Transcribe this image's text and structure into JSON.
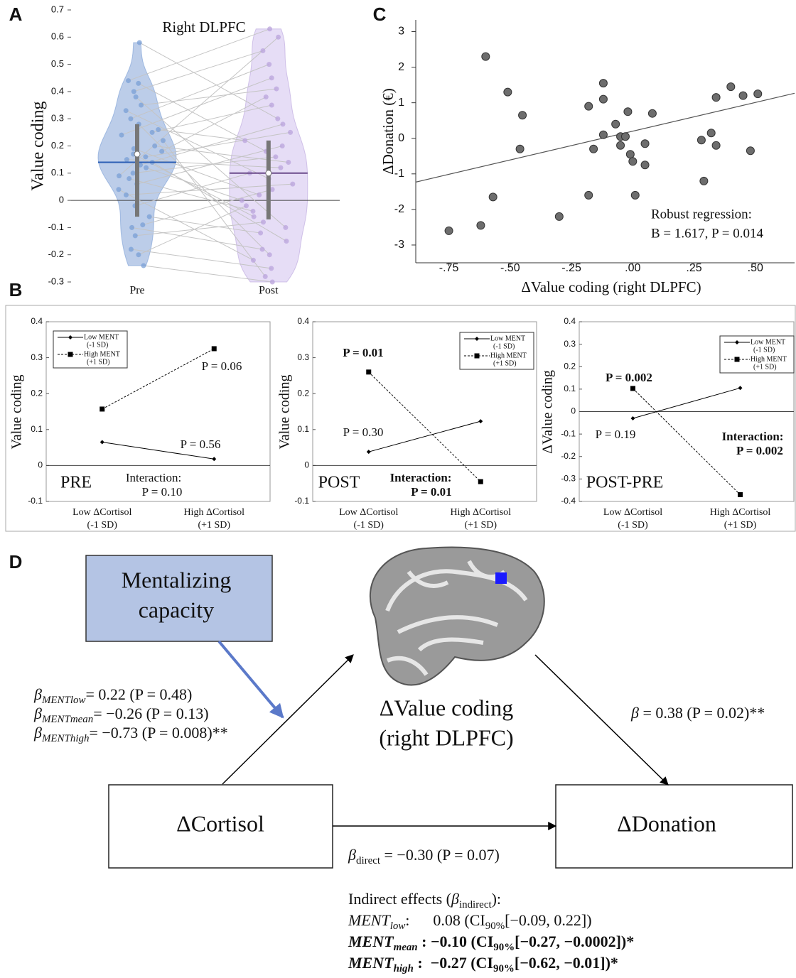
{
  "panel_labels": [
    "A",
    "B",
    "C",
    "D"
  ],
  "chart_data": [
    {
      "type": "violin",
      "title": "Right DLPFC",
      "y_label": "Value coding",
      "categories": [
        "Pre",
        "Post"
      ],
      "series": [
        {
          "color": "#7a9fd6",
          "fill": "#bccde9",
          "mean_color": "#2c5fb5",
          "mean": 0.14,
          "whisker": [
            -0.06,
            0.28
          ],
          "median": 0.17,
          "values": [
            0.58,
            0.44,
            0.43,
            0.4,
            0.38,
            0.35,
            0.33,
            0.3,
            0.28,
            0.26,
            0.25,
            0.24,
            0.22,
            0.2,
            0.19,
            0.18,
            0.17,
            0.16,
            0.15,
            0.14,
            0.13,
            0.12,
            0.1,
            0.09,
            0.08,
            0.06,
            0.04,
            0.02,
            -0.02,
            -0.06,
            -0.09,
            -0.1,
            -0.13,
            -0.18,
            -0.2,
            -0.24
          ]
        },
        {
          "color": "#b9a3dc",
          "fill": "#e6ddf6",
          "mean_color": "#6a4a8a",
          "mean": 0.1,
          "whisker": [
            -0.07,
            0.22
          ],
          "median": 0.1,
          "values": [
            0.3,
            0.63,
            0.18,
            0.55,
            -0.1,
            0.41,
            0.08,
            0.5,
            -0.2,
            0.22,
            0.35,
            0.45,
            -0.28,
            0.14,
            0.02,
            0.38,
            -0.06,
            0.25,
            0.12,
            -0.15,
            0.28,
            0.0,
            0.16,
            0.6,
            -0.04,
            0.2,
            -0.22,
            0.06,
            0.1,
            -0.12,
            0.04,
            -0.18,
            -0.08,
            -0.25,
            -0.02,
            -0.3
          ]
        }
      ],
      "paired_lines": true,
      "zero_line": true,
      "ylim": [
        -0.3,
        0.7
      ],
      "yticks": [
        -0.3,
        -0.2,
        -0.1,
        0,
        0.1,
        0.2,
        0.3,
        0.4,
        0.5,
        0.6,
        0.7
      ]
    },
    {
      "type": "scatter",
      "x_label": "ΔValue coding (right DLPFC)",
      "y_label": "ΔDonation (€)",
      "color": "#6d6d6d",
      "x": [
        -0.6,
        -0.51,
        -0.75,
        -0.62,
        -0.57,
        -0.45,
        -0.46,
        -0.3,
        -0.18,
        -0.18,
        -0.12,
        -0.12,
        -0.12,
        -0.16,
        -0.07,
        -0.05,
        -0.03,
        -0.05,
        -0.02,
        -0.01,
        0.0,
        0.05,
        0.05,
        0.01,
        0.08,
        0.28,
        0.32,
        0.34,
        0.29,
        0.34,
        0.4,
        0.45,
        0.51,
        0.48
      ],
      "y": [
        2.3,
        1.3,
        -2.6,
        -2.45,
        -1.65,
        0.65,
        -0.3,
        -2.2,
        0.9,
        -1.6,
        1.55,
        1.1,
        0.1,
        -0.3,
        0.4,
        0.05,
        0.05,
        -0.2,
        0.75,
        -0.45,
        -0.65,
        -0.15,
        -0.75,
        -1.6,
        0.7,
        -0.05,
        0.15,
        -0.2,
        -1.2,
        1.15,
        1.45,
        1.2,
        1.25,
        -0.35
      ],
      "fit": {
        "intercept": 0.2,
        "slope": 1.617
      },
      "annotations": [
        "Robust regression:",
        "B = 1.617, P = 0.014"
      ],
      "xlim": [
        -0.885,
        0.66
      ],
      "ylim": [
        -3.5,
        3.33
      ],
      "xticks": [
        {
          "value": -0.75,
          "label": "-.75"
        },
        {
          "value": -0.5,
          "label": "-.50"
        },
        {
          "value": -0.25,
          "label": "-.25"
        },
        {
          "value": 0,
          "label": ".00"
        },
        {
          "value": 0.25,
          "label": ".25"
        },
        {
          "value": 0.5,
          "label": ".50"
        }
      ],
      "yticks": [
        -3,
        -2,
        -1,
        0,
        1,
        2,
        3
      ]
    },
    {
      "type": "line",
      "y_label": "Value coding",
      "condition": "PRE",
      "categories": [
        "Low ΔCortisol",
        "High ΔCortisol"
      ],
      "category_sublabels": [
        "(-1 SD)",
        "(+1 SD)"
      ],
      "series": [
        {
          "name": "Low MENT",
          "sublabel": "(-1 SD)",
          "color": "#000000",
          "marker": "diamond",
          "dashed": false,
          "values": [
            0.065,
            0.018
          ]
        },
        {
          "name": "High MENT",
          "sublabel": "(+1 SD)",
          "color": "#000000",
          "marker": "square",
          "dashed": true,
          "values": [
            0.157,
            0.325
          ]
        }
      ],
      "annotations": [
        {
          "text": "P = 0.06"
        },
        {
          "text": "P = 0.56"
        },
        {
          "text": "Interaction:"
        },
        {
          "text": "P = 0.10"
        }
      ],
      "zero_line": true,
      "ylim": [
        -0.1,
        0.4
      ],
      "yticks": [
        -0.1,
        0,
        0.1,
        0.2,
        0.3,
        0.4
      ]
    },
    {
      "type": "line",
      "y_label": "Value coding",
      "condition": "POST",
      "categories": [
        "Low ΔCortisol",
        "High ΔCortisol"
      ],
      "category_sublabels": [
        "(-1 SD)",
        "(+1 SD)"
      ],
      "series": [
        {
          "name": "Low MENT",
          "sublabel": "(-1 SD)",
          "color": "#000000",
          "marker": "diamond",
          "dashed": false,
          "values": [
            0.038,
            0.123
          ]
        },
        {
          "name": "High MENT",
          "sublabel": "(+1 SD)",
          "color": "#000000",
          "marker": "square",
          "dashed": true,
          "values": [
            0.26,
            -0.045
          ]
        }
      ],
      "annotations": [
        {
          "text": "P = 0.01",
          "style": "bold"
        },
        {
          "text": "P = 0.30"
        },
        {
          "text": "Interaction:",
          "style": "bold"
        },
        {
          "text": "P = 0.01",
          "style": "bold"
        }
      ],
      "zero_line": true,
      "ylim": [
        -0.1,
        0.4
      ],
      "yticks": [
        -0.1,
        0,
        0.1,
        0.2,
        0.3,
        0.4
      ]
    },
    {
      "type": "line",
      "y_label": "ΔValue coding",
      "condition": "POST-PRE",
      "categories": [
        "Low ΔCortisol",
        "High ΔCortisol"
      ],
      "category_sublabels": [
        "(-1 SD)",
        "(+1 SD)"
      ],
      "series": [
        {
          "name": "Low MENT",
          "sublabel": "(-1 SD)",
          "color": "#000000",
          "marker": "diamond",
          "dashed": false,
          "values": [
            -0.03,
            0.105
          ]
        },
        {
          "name": "High MENT",
          "sublabel": "(+1 SD)",
          "color": "#000000",
          "marker": "square",
          "dashed": true,
          "values": [
            0.103,
            -0.37
          ]
        }
      ],
      "annotations": [
        {
          "text": "P = 0.002",
          "style": "bold"
        },
        {
          "text": "P = 0.19"
        },
        {
          "text": "Interaction:",
          "style": "bold"
        },
        {
          "text": "P = 0.002",
          "style": "bold"
        }
      ],
      "zero_line": true,
      "ylim": [
        -0.4,
        0.4
      ],
      "yticks": [
        -0.4,
        -0.3,
        -0.2,
        -0.1,
        0,
        0.1,
        0.2,
        0.3,
        0.4
      ]
    }
  ],
  "diagram": {
    "moderator": [
      "Mentalizing",
      "capacity"
    ],
    "mediator": [
      "ΔValue coding",
      "(right DLPFC)"
    ],
    "x_node": "ΔCortisol",
    "y_node": "ΔDonation",
    "a_paths": [
      [
        {
          "text": "β",
          "style": "italic"
        },
        {
          "text": "MENTlow",
          "style": "italic-sub"
        },
        {
          "text": "= 0.22 (P = 0.48)"
        }
      ],
      [
        {
          "text": "β",
          "style": "italic"
        },
        {
          "text": "MENTmean",
          "style": "italic-sub"
        },
        {
          "text": "= −0.26 (P = 0.13)"
        }
      ],
      [
        {
          "text": "β",
          "style": "italic"
        },
        {
          "text": "MENThigh",
          "style": "italic-sub"
        },
        {
          "text": "= −0.73 (P = 0.008)**"
        }
      ]
    ],
    "b_path": [
      {
        "text": "β",
        "style": "italic"
      },
      {
        "text": " = 0.38 (P = 0.02)**"
      }
    ],
    "direct": [
      {
        "text": "β",
        "style": "italic"
      },
      {
        "text": "direct",
        "style": "sub"
      },
      {
        "text": " = −0.30 (P = 0.07)"
      }
    ],
    "indirect": [
      [
        {
          "text": "Indirect effects ("
        },
        {
          "text": "β",
          "style": "italic"
        },
        {
          "text": "indirect",
          "style": "sub"
        },
        {
          "text": "):"
        }
      ],
      [
        {
          "text": "MENT",
          "style": "italic"
        },
        {
          "text": "low",
          "style": "italic-sub"
        },
        {
          "text": ":      0.08 (CI"
        },
        {
          "text": "90%",
          "style": "sub"
        },
        {
          "text": "[−0.09, 0.22])"
        }
      ],
      [
        {
          "text": "MENT",
          "style": "bold-italic"
        },
        {
          "text": "mean",
          "style": "bold-italic-sub"
        },
        {
          "text": " : −0.10 (CI",
          "style": "bold"
        },
        {
          "text": "90%",
          "style": "bold-sub"
        },
        {
          "text": "[−0.27, −0.0002])*",
          "style": "bold"
        }
      ],
      [
        {
          "text": "MENT",
          "style": "bold-italic"
        },
        {
          "text": "high",
          "style": "bold-italic-sub"
        },
        {
          "text": " :  −0.27 (CI",
          "style": "bold"
        },
        {
          "text": "90%",
          "style": "bold-sub"
        },
        {
          "text": "[−0.62, −0.01])*",
          "style": "bold"
        }
      ]
    ]
  }
}
